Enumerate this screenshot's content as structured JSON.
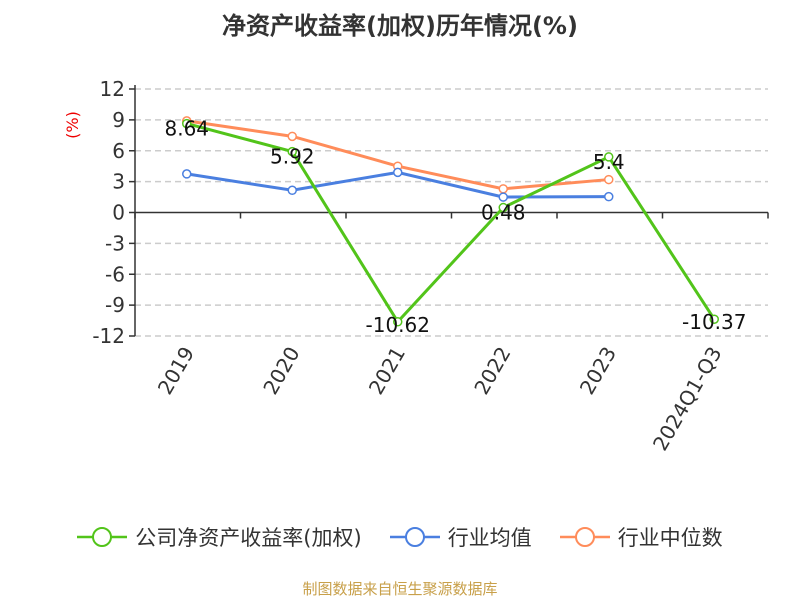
{
  "chart_data": {
    "type": "line",
    "title": "净资产收益率(加权)历年情况(%)",
    "ylabel": "(%)",
    "categories": [
      "2019",
      "2020",
      "2021",
      "2022",
      "2023",
      "2024Q1-Q3"
    ],
    "ylim": [
      -12,
      12
    ],
    "yticks": [
      12,
      9,
      6,
      3,
      0,
      -3,
      -6,
      -9,
      -12
    ],
    "grid": true,
    "legend_position": "bottom",
    "series": [
      {
        "name": "公司净资产收益率(加权)",
        "color": "#52c41a",
        "values": [
          8.64,
          5.92,
          -10.62,
          0.48,
          5.4,
          -10.37
        ],
        "labels": [
          "8.64",
          "5.92",
          "-10.62",
          "0.48",
          "5.4",
          "-10.37"
        ]
      },
      {
        "name": "行业均值",
        "color": "#4a7fe0",
        "values": [
          3.75,
          2.16,
          3.9,
          1.5,
          1.54,
          null
        ]
      },
      {
        "name": "行业中位数",
        "color": "#ff8c5a",
        "values": [
          8.9,
          7.4,
          4.5,
          2.3,
          3.2,
          null
        ]
      }
    ]
  },
  "source": "制图数据来自恒生聚源数据库"
}
